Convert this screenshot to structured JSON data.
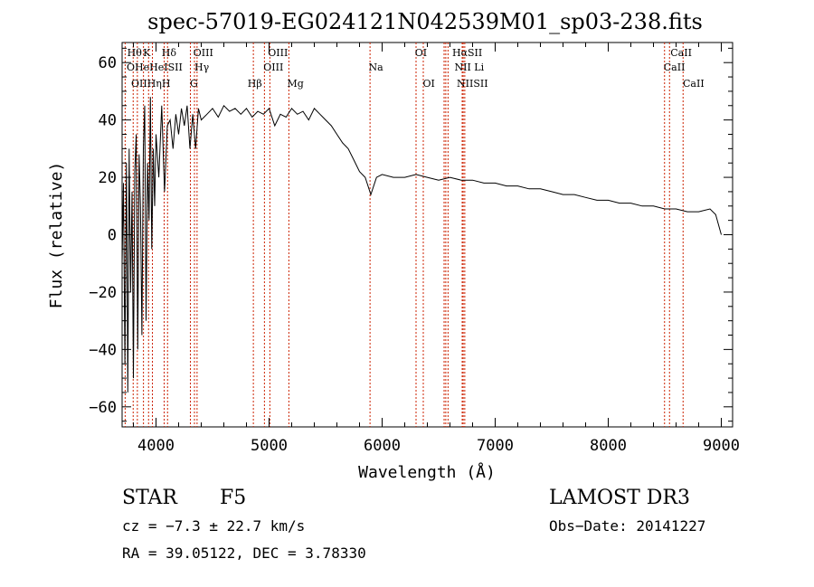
{
  "chart_data": {
    "type": "line",
    "title": "spec-57019-EG024121N042539M01_sp03-238.fits",
    "xlabel": "Wavelength (Å)",
    "ylabel": "Flux (relative)",
    "xlim": [
      3700,
      9100
    ],
    "ylim": [
      -67,
      67
    ],
    "xticks": [
      4000,
      5000,
      6000,
      7000,
      8000,
      9000
    ],
    "yticks": [
      -60,
      -40,
      -20,
      0,
      20,
      40,
      60
    ],
    "xtick_labels": [
      "4000",
      "5000",
      "6000",
      "7000",
      "8000",
      "9000"
    ],
    "ytick_labels": [
      "−60",
      "−40",
      "−20",
      "0",
      "20",
      "40",
      "60"
    ],
    "series": [
      {
        "name": "spectrum",
        "x": [
          3700,
          3712,
          3725,
          3738,
          3750,
          3762,
          3775,
          3788,
          3800,
          3812,
          3825,
          3838,
          3850,
          3862,
          3875,
          3888,
          3900,
          3912,
          3925,
          3938,
          3950,
          3962,
          3975,
          3988,
          4000,
          4025,
          4050,
          4075,
          4100,
          4125,
          4150,
          4175,
          4200,
          4225,
          4250,
          4275,
          4300,
          4325,
          4350,
          4375,
          4400,
          4450,
          4500,
          4550,
          4600,
          4650,
          4700,
          4750,
          4800,
          4850,
          4900,
          4950,
          5000,
          5050,
          5100,
          5150,
          5200,
          5250,
          5300,
          5350,
          5400,
          5450,
          5500,
          5550,
          5600,
          5650,
          5700,
          5750,
          5800,
          5850,
          5900,
          5950,
          6000,
          6100,
          6200,
          6300,
          6400,
          6500,
          6600,
          6700,
          6800,
          6900,
          7000,
          7100,
          7200,
          7300,
          7400,
          7500,
          7600,
          7700,
          7800,
          7900,
          8000,
          8100,
          8200,
          8300,
          8400,
          8500,
          8600,
          8700,
          8800,
          8900,
          8950,
          9000
        ],
        "y": [
          -10,
          18,
          -45,
          25,
          -55,
          30,
          -20,
          15,
          -50,
          22,
          35,
          -40,
          28,
          10,
          -35,
          30,
          45,
          -30,
          25,
          5,
          48,
          -5,
          30,
          10,
          35,
          20,
          45,
          15,
          38,
          40,
          30,
          42,
          35,
          44,
          38,
          45,
          30,
          42,
          30,
          44,
          40,
          42,
          44,
          41,
          45,
          43,
          44,
          42,
          44,
          41,
          43,
          42,
          44,
          38,
          42,
          41,
          44,
          42,
          43,
          40,
          44,
          42,
          40,
          38,
          35,
          32,
          30,
          26,
          22,
          20,
          14,
          20,
          21,
          20,
          20,
          21,
          20,
          19,
          20,
          19,
          19,
          18,
          18,
          17,
          17,
          16,
          16,
          15,
          14,
          14,
          13,
          12,
          12,
          11,
          11,
          10,
          10,
          9,
          9,
          8,
          8,
          9,
          7,
          0
        ]
      }
    ],
    "line_markers": [
      {
        "name": "Hθ",
        "wavelength": 3798
      },
      {
        "name": "OII",
        "wavelength": 3727
      },
      {
        "name": "Hη",
        "wavelength": 3835
      },
      {
        "name": "HeI",
        "wavelength": 3889
      },
      {
        "name": "K",
        "wavelength": 3934
      },
      {
        "name": "H",
        "wavelength": 3968
      },
      {
        "name": "SII",
        "wavelength": 4072
      },
      {
        "name": "Hδ",
        "wavelength": 4102
      },
      {
        "name": "OIII",
        "wavelength": 4363
      },
      {
        "name": "Hγ",
        "wavelength": 4340
      },
      {
        "name": "G",
        "wavelength": 4304
      },
      {
        "name": "Hβ",
        "wavelength": 4861
      },
      {
        "name": "OIII",
        "wavelength": 4959
      },
      {
        "name": "OIII",
        "wavelength": 5007
      },
      {
        "name": "Mg",
        "wavelength": 5175
      },
      {
        "name": "Na",
        "wavelength": 5893
      },
      {
        "name": "OI",
        "wavelength": 6300
      },
      {
        "name": "OI",
        "wavelength": 6364
      },
      {
        "name": "Hα",
        "wavelength": 6563
      },
      {
        "name": "NII",
        "wavelength": 6548
      },
      {
        "name": "NII",
        "wavelength": 6583
      },
      {
        "name": "SII",
        "wavelength": 6717
      },
      {
        "name": "Li",
        "wavelength": 6708
      },
      {
        "name": "SII",
        "wavelength": 6731
      },
      {
        "name": "CaII",
        "wavelength": 8498
      },
      {
        "name": "CaII",
        "wavelength": 8542
      },
      {
        "name": "CaII",
        "wavelength": 8662
      }
    ],
    "marker_labels": {
      "row1": [
        {
          "text": "Hθ",
          "wavelength": 3745
        },
        {
          "text": "K",
          "wavelength": 3885
        },
        {
          "text": "Hδ",
          "wavelength": 4050
        },
        {
          "text": "OIII",
          "wavelength": 4330
        },
        {
          "text": "OIII",
          "wavelength": 4990
        },
        {
          "text": "OI",
          "wavelength": 6290
        },
        {
          "text": "HαSII",
          "wavelength": 6620
        },
        {
          "text": "CaII",
          "wavelength": 8550
        }
      ],
      "row2": [
        {
          "text": "OHeHeISII",
          "wavelength": 3740
        },
        {
          "text": "Hγ",
          "wavelength": 4340
        },
        {
          "text": "OIII",
          "wavelength": 4950
        },
        {
          "text": "Na",
          "wavelength": 5880
        },
        {
          "text": "NII Li",
          "wavelength": 6640
        },
        {
          "text": "CaII",
          "wavelength": 8490
        }
      ],
      "row3": [
        {
          "text": "OIIHηH",
          "wavelength": 3780
        },
        {
          "text": "G",
          "wavelength": 4300
        },
        {
          "text": "Hβ",
          "wavelength": 4810
        },
        {
          "text": "Mg",
          "wavelength": 5160
        },
        {
          "text": "OI",
          "wavelength": 6360
        },
        {
          "text": "NIISII",
          "wavelength": 6660
        },
        {
          "text": "CaII",
          "wavelength": 8660
        }
      ]
    },
    "line_color": "#000000",
    "marker_color": "#cc2200",
    "grid": false
  },
  "info": {
    "object_type": "STAR",
    "spectral_class": "F5",
    "survey": "LAMOST DR3",
    "cz": "cz = −7.3 ± 22.7 km/s",
    "obs_date": "Obs−Date: 20141227",
    "radec": "RA =  39.05122, DEC =   3.78330"
  }
}
